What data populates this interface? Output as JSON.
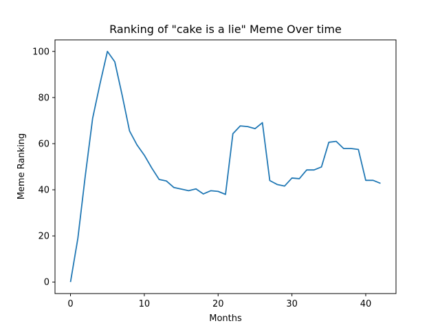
{
  "chart_data": {
    "type": "line",
    "title": "Ranking of \"cake is a lie\" Meme Over time",
    "xlabel": "Months",
    "ylabel": "Meme Ranking",
    "xlim": [
      -2.1,
      44.1
    ],
    "ylim": [
      -5,
      105
    ],
    "xticks": [
      0,
      10,
      20,
      30,
      40
    ],
    "yticks": [
      0,
      20,
      40,
      60,
      80,
      100
    ],
    "grid": false,
    "line_color": "#1f77b4",
    "series": [
      {
        "x": [
          0,
          1,
          2,
          3,
          4,
          5,
          6,
          7,
          8,
          9,
          10,
          11,
          12,
          13,
          14,
          15,
          16,
          17,
          18,
          19,
          20,
          21,
          22,
          23,
          24,
          25,
          26,
          27,
          28,
          29,
          30,
          31,
          32,
          33,
          34,
          35,
          36,
          37,
          38,
          39,
          40,
          41,
          42
        ],
        "values": [
          0,
          19,
          46,
          71,
          86,
          100,
          95.5,
          81,
          65.5,
          59.5,
          55,
          49.5,
          44.5,
          43.8,
          41,
          40.3,
          39.6,
          40.4,
          38.2,
          39.6,
          39.3,
          38,
          64.3,
          67.7,
          67.4,
          66.5,
          69.1,
          44,
          42.3,
          41.6,
          45.1,
          44.8,
          48.6,
          48.6,
          49.9,
          60.6,
          61,
          57.9,
          57.9,
          57.5,
          44.1,
          44.1,
          42.8
        ]
      }
    ]
  }
}
